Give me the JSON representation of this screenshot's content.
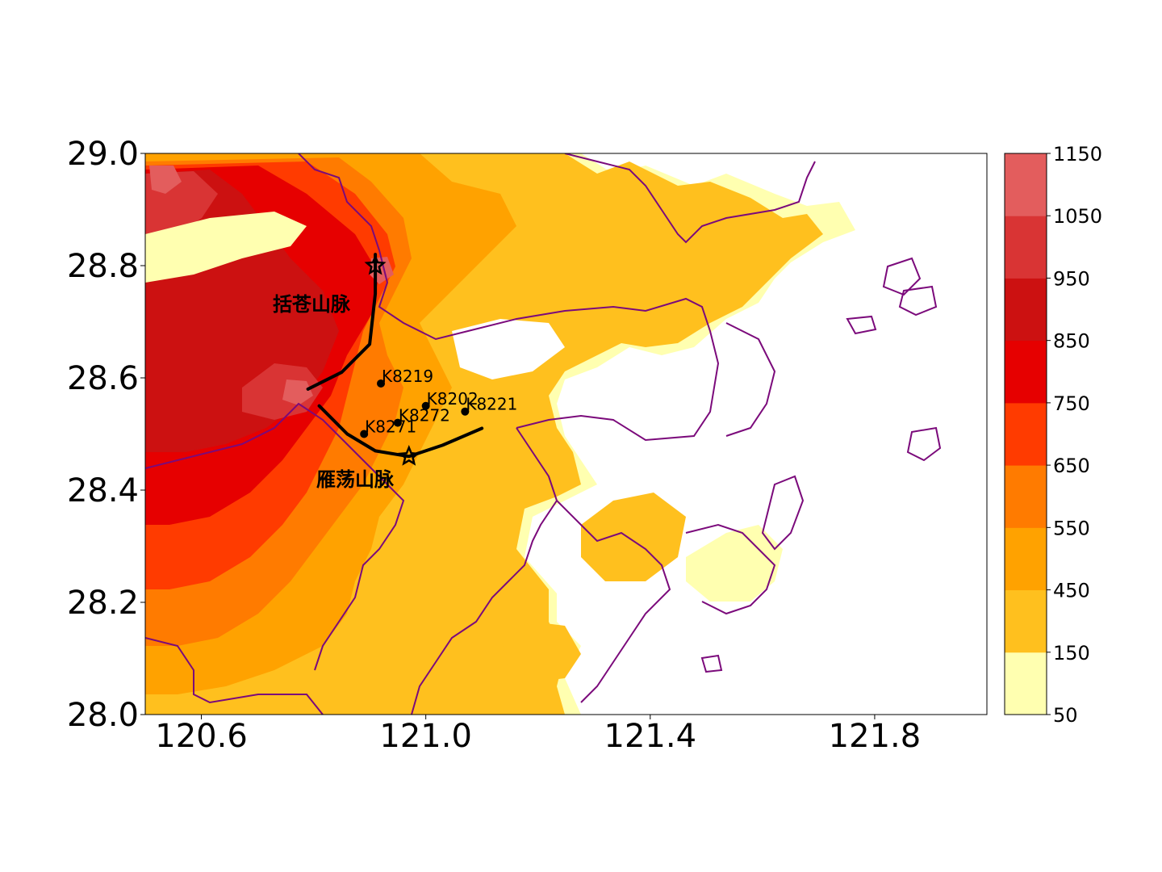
{
  "map": {
    "x_ticks": [
      "120.6",
      "121.0",
      "121.4",
      "121.8"
    ],
    "y_ticks": [
      "28.0",
      "28.2",
      "28.4",
      "28.6",
      "28.8",
      "29.0"
    ],
    "xlim": [
      120.5,
      122.0
    ],
    "ylim": [
      28.0,
      29.0
    ],
    "mountain_ranges": [
      {
        "label": "括苍山脉"
      },
      {
        "label": "雁荡山脉"
      }
    ],
    "stations": [
      {
        "label": "K8219",
        "lon": 120.92,
        "lat": 28.59
      },
      {
        "label": "K8202",
        "lon": 121.0,
        "lat": 28.55
      },
      {
        "label": "K8221",
        "lon": 121.07,
        "lat": 28.54
      },
      {
        "label": "K8272",
        "lon": 120.95,
        "lat": 28.52
      },
      {
        "label": "K8271",
        "lon": 120.89,
        "lat": 28.5
      }
    ],
    "peaks": [
      {
        "lon": 120.91,
        "lat": 28.8
      },
      {
        "lon": 120.97,
        "lat": 28.46
      }
    ],
    "ridge_lines": [
      [
        [
          120.91,
          28.82
        ],
        [
          120.91,
          28.75
        ],
        [
          120.9,
          28.66
        ],
        [
          120.85,
          28.61
        ],
        [
          120.79,
          28.58
        ]
      ],
      [
        [
          120.81,
          28.55
        ],
        [
          120.86,
          28.5
        ],
        [
          120.91,
          28.47
        ],
        [
          120.97,
          28.46
        ],
        [
          121.03,
          28.48
        ],
        [
          121.1,
          28.51
        ]
      ]
    ]
  },
  "colorbar": {
    "levels": [
      "50",
      "150",
      "450",
      "550",
      "650",
      "750",
      "850",
      "950",
      "1050",
      "1150"
    ],
    "colors": [
      "#ffffb0",
      "#ffc01e",
      "#ffa200",
      "#ff7b00",
      "#ff3b00",
      "#e60000",
      "#cc1111",
      "#d93434",
      "#e35d5d"
    ]
  },
  "style": {
    "boundary_color": "#7b0a7b",
    "terrain_colors": [
      "#ffffb0",
      "#ffc01e",
      "#ffa200",
      "#ff7b00",
      "#ff3b00",
      "#e60000",
      "#cc1111",
      "#d93434",
      "#e35d5d"
    ]
  }
}
